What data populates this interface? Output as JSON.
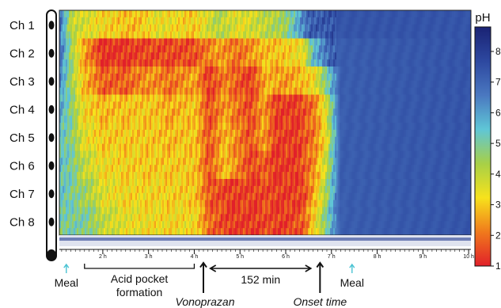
{
  "chart_data": {
    "type": "heatmap",
    "colorbar": {
      "title": "pH",
      "ticks": [
        "1",
        "2",
        "3",
        "4",
        "5",
        "6",
        "7",
        "8"
      ],
      "range": [
        1,
        8.8
      ],
      "colors": [
        "#e1202a",
        "#f07a1c",
        "#f7e21c",
        "#a7d047",
        "#5fc6d6",
        "#4a78c0",
        "#2d48a0",
        "#1a2273"
      ]
    },
    "rows": [
      "Ch 1",
      "Ch 2",
      "Ch 3",
      "Ch 4",
      "Ch 5",
      "Ch 6",
      "Ch 7",
      "Ch 8"
    ],
    "x_ticks": [
      "2 h",
      "3 h",
      "4 h",
      "5 h",
      "6 h",
      "7 h",
      "8 h",
      "9 h",
      "10 h"
    ],
    "x_range_h": [
      1.05,
      10.05
    ],
    "ph_by_channel": [
      {
        "channel": "Ch 1",
        "t_h": [
          1.05,
          1.3,
          1.5,
          2.0,
          2.7,
          3.2,
          4.0,
          4.5,
          5.0,
          5.5,
          6.0,
          6.3,
          6.55,
          7.0,
          10.05
        ],
        "ph": [
          7.0,
          4.0,
          3.8,
          3.2,
          2.8,
          3.5,
          3.0,
          4.2,
          3.5,
          4.0,
          4.5,
          6.0,
          7.2,
          7.4,
          7.4
        ]
      },
      {
        "channel": "Ch 2",
        "t_h": [
          1.05,
          1.3,
          1.6,
          2.0,
          2.5,
          3.0,
          3.5,
          4.0,
          4.5,
          5.0,
          5.5,
          6.0,
          6.4,
          6.6,
          7.0,
          10.05
        ],
        "ph": [
          7.0,
          4.5,
          2.5,
          1.2,
          1.3,
          1.5,
          1.5,
          1.6,
          2.5,
          2.0,
          2.8,
          3.0,
          3.5,
          5.5,
          7.2,
          7.4
        ]
      },
      {
        "channel": "Ch 3",
        "t_h": [
          1.05,
          1.3,
          1.6,
          2.0,
          2.5,
          3.0,
          3.5,
          4.0,
          4.3,
          4.7,
          5.2,
          5.6,
          6.0,
          6.6,
          6.9,
          7.2,
          10.05
        ],
        "ph": [
          6.5,
          4.5,
          2.8,
          1.8,
          1.8,
          2.4,
          2.0,
          2.6,
          1.4,
          2.2,
          1.3,
          2.8,
          2.4,
          3.2,
          5.0,
          7.2,
          7.4
        ]
      },
      {
        "channel": "Ch 4",
        "t_h": [
          1.05,
          1.3,
          1.6,
          2.0,
          2.5,
          3.0,
          3.5,
          4.0,
          4.3,
          4.7,
          5.2,
          5.5,
          5.8,
          6.2,
          6.6,
          6.9,
          7.2,
          10.05
        ],
        "ph": [
          6.0,
          4.8,
          3.2,
          2.8,
          2.9,
          3.0,
          2.6,
          3.0,
          1.6,
          2.5,
          1.5,
          2.5,
          1.4,
          1.3,
          2.0,
          3.8,
          7.2,
          7.4
        ]
      },
      {
        "channel": "Ch 5",
        "t_h": [
          1.05,
          1.3,
          1.6,
          2.0,
          2.5,
          3.0,
          3.5,
          4.0,
          4.3,
          4.7,
          5.2,
          5.5,
          5.8,
          6.2,
          6.6,
          6.9,
          7.2,
          10.05
        ],
        "ph": [
          5.5,
          4.8,
          3.5,
          3.0,
          3.0,
          3.0,
          2.8,
          3.0,
          1.7,
          2.8,
          1.6,
          2.5,
          1.4,
          1.3,
          2.0,
          3.5,
          7.2,
          7.4
        ]
      },
      {
        "channel": "Ch 6",
        "t_h": [
          1.05,
          1.3,
          1.6,
          2.0,
          2.5,
          3.0,
          3.5,
          4.0,
          4.3,
          4.7,
          5.2,
          5.5,
          5.8,
          6.2,
          6.6,
          6.9,
          7.2,
          10.05
        ],
        "ph": [
          5.5,
          5.0,
          4.0,
          3.3,
          3.1,
          3.0,
          3.0,
          3.0,
          1.7,
          2.9,
          1.5,
          1.8,
          1.3,
          1.3,
          2.2,
          4.0,
          7.2,
          7.4
        ]
      },
      {
        "channel": "Ch 7",
        "t_h": [
          1.05,
          1.3,
          1.6,
          2.0,
          2.5,
          3.0,
          3.5,
          4.0,
          4.3,
          4.7,
          5.2,
          5.6,
          6.0,
          6.4,
          6.6,
          6.9,
          7.2,
          10.05
        ],
        "ph": [
          5.5,
          5.0,
          4.5,
          3.6,
          3.2,
          3.2,
          3.1,
          3.0,
          1.8,
          1.4,
          1.4,
          1.5,
          1.3,
          1.5,
          2.5,
          4.5,
          7.2,
          7.4
        ]
      },
      {
        "channel": "Ch 8",
        "t_h": [
          1.05,
          1.3,
          1.6,
          2.0,
          2.5,
          3.0,
          3.5,
          4.0,
          4.3,
          4.7,
          5.2,
          5.6,
          6.0,
          6.4,
          6.6,
          6.9,
          7.2,
          10.05
        ],
        "ph": [
          5.0,
          5.0,
          5.0,
          4.0,
          3.5,
          3.3,
          3.2,
          3.3,
          2.0,
          1.4,
          1.3,
          1.5,
          1.3,
          1.8,
          3.0,
          5.0,
          7.2,
          7.4
        ]
      }
    ],
    "annotations": {
      "meal_1": {
        "text": "Meal",
        "time_h": 1.15
      },
      "acid_pocket": {
        "text_line1": "Acid pocket",
        "text_line2": "formation",
        "start_h": 1.6,
        "end_h": 4.0
      },
      "vonoprazan": {
        "text": "Vonoprazan",
        "time_h": 4.2
      },
      "duration": {
        "text": "152 min",
        "start_h": 4.35,
        "end_h": 6.55
      },
      "onset": {
        "text": "Onset time",
        "time_h": 6.75
      },
      "meal_2": {
        "text": "Meal",
        "time_h": 7.45
      }
    },
    "accent_colors": {
      "meal_arrow": "#4ac3d3",
      "arrow": "#111111"
    }
  }
}
